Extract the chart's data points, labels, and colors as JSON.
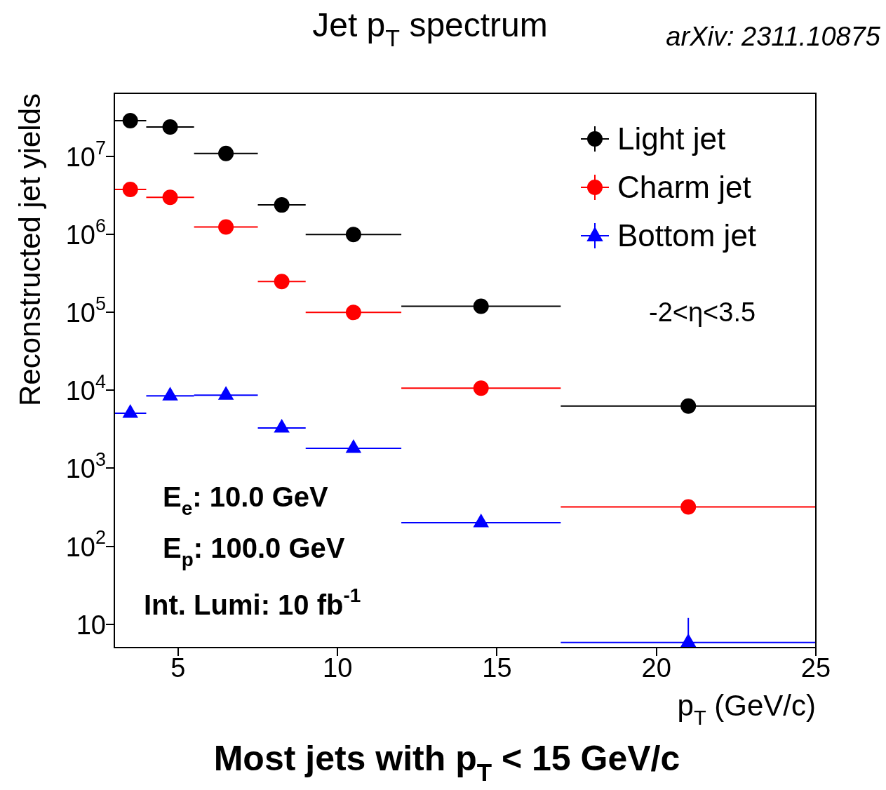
{
  "chart_data": {
    "type": "scatter",
    "title": "Jet p$_{T}$ spectrum",
    "xlabel": "p$_{T}$ (GeV/c)",
    "ylabel": "Reconstructed jet yields",
    "x": [
      3.5,
      4.75,
      6.5,
      8.25,
      10.5,
      14.5,
      21
    ],
    "series": [
      {
        "name": "Light jet",
        "color": "#000000",
        "marker": "circle",
        "values": [
          29000000,
          24000000,
          11000000,
          2400000,
          1000000,
          120000,
          6300
        ],
        "xerrors": [
          0.5,
          0.75,
          1,
          0.75,
          1.5,
          2.5,
          4
        ]
      },
      {
        "name": "Charm jet",
        "color": "#ff0000",
        "marker": "circle",
        "values": [
          3800000,
          3000000,
          1250000,
          250000,
          100000,
          10700,
          320
        ],
        "xerrors": [
          0.5,
          0.75,
          1,
          0.75,
          1.5,
          2.5,
          4
        ]
      },
      {
        "name": "Bottom jet",
        "color": "#0000ff",
        "marker": "triangle",
        "values": [
          5100,
          8500,
          8700,
          3300,
          1800,
          200,
          5.8
        ],
        "xerrors": [
          0.5,
          0.75,
          1,
          0.75,
          1.5,
          2.5,
          4
        ],
        "errors": [
          null,
          null,
          null,
          null,
          null,
          null,
          [
            5,
            12
          ]
        ]
      }
    ],
    "log": "y",
    "xlim": [
      3,
      25
    ],
    "xticks": [
      5,
      10,
      15,
      20,
      25
    ],
    "ylim": [
      5,
      65000000
    ],
    "yticks": [
      {
        "value": 10,
        "label": "10"
      },
      {
        "value": 100,
        "label": "10$^{2}$"
      },
      {
        "value": 1000,
        "label": "10$^{3}$"
      },
      {
        "value": 10000,
        "label": "10$^{4}$"
      },
      {
        "value": 100000,
        "label": "10$^{5}$"
      },
      {
        "value": 1000000,
        "label": "10$^{6}$"
      },
      {
        "value": 10000000,
        "label": "10$^{7}$"
      }
    ],
    "grid": false,
    "legend": "top right",
    "annotations": [
      "arXiv: 2311.10875",
      "-2<η<3.5",
      "E$_{e}$: 10.0 GeV",
      "E$_{p}$: 100.0 GeV",
      "Int. Lumi: 10 fb$^{-1}$",
      "Most jets with p$_{T}$ < 15 GeV/c"
    ]
  }
}
